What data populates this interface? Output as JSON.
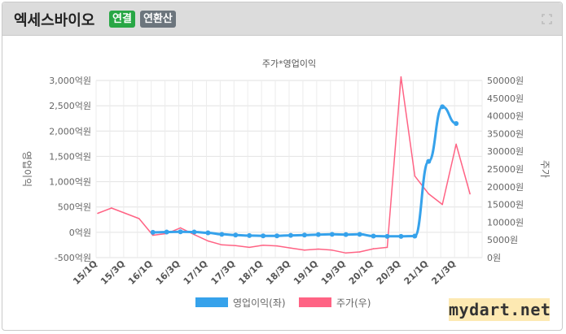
{
  "header": {
    "company_name": "엑세스바이오",
    "badge_consolidated": "연결",
    "badge_period": "연환산"
  },
  "watermark": "mydart.net",
  "icons": {
    "expand": "expand-icon"
  },
  "colors": {
    "operating_profit": "#36a2eb",
    "stock_price": "#ff6384",
    "header_bg": "#dcdcdc",
    "badge_green": "#28a745",
    "badge_gray": "#6c757d",
    "watermark_bg": "#fde9b2"
  },
  "chart_data": {
    "type": "line",
    "title": "주가*영업이익",
    "categories": [
      "15/1Q",
      "15/3Q",
      "16/1Q",
      "16/3Q",
      "17/1Q",
      "17/3Q",
      "18/1Q",
      "18/3Q",
      "19/1Q",
      "19/3Q",
      "20/1Q",
      "20/3Q",
      "21/1Q",
      "21/3Q"
    ],
    "y_left": {
      "label": "영업이익",
      "min": -500,
      "max": 3000,
      "step": 500,
      "ticks": [
        "-500억원",
        "0억원",
        "500억원",
        "1,000억원",
        "1,500억원",
        "2,000억원",
        "2,500억원",
        "3,000억원"
      ]
    },
    "y_right": {
      "label": "주가",
      "min": 0,
      "max": 50000,
      "step": 5000,
      "ticks": [
        "0원",
        "5000원",
        "10000원",
        "15000원",
        "20000원",
        "25000원",
        "30000원",
        "35000원",
        "40000원",
        "45000원",
        "50000원"
      ]
    },
    "series": [
      {
        "name": "영업이익(좌)",
        "axis": "left",
        "x": [
          "16/1Q",
          "16/2Q",
          "16/3Q",
          "16/4Q",
          "17/1Q",
          "17/2Q",
          "17/3Q",
          "17/4Q",
          "18/1Q",
          "18/2Q",
          "18/3Q",
          "18/4Q",
          "19/1Q",
          "19/2Q",
          "19/3Q",
          "19/4Q",
          "20/1Q",
          "20/2Q",
          "20/3Q",
          "20/4Q",
          "21/1Q",
          "21/2Q",
          "21/3Q"
        ],
        "values": [
          0,
          5,
          10,
          5,
          -10,
          -40,
          -55,
          -65,
          -70,
          -70,
          -60,
          -55,
          -45,
          -40,
          -45,
          -40,
          -75,
          -80,
          -80,
          -75,
          1400,
          2480,
          2150
        ]
      },
      {
        "name": "주가(우)",
        "axis": "right",
        "x": [
          "15/1Q",
          "15/2Q",
          "15/3Q",
          "15/4Q",
          "16/1Q",
          "16/2Q",
          "16/3Q",
          "16/4Q",
          "17/1Q",
          "17/2Q",
          "17/3Q",
          "17/4Q",
          "18/1Q",
          "18/2Q",
          "18/3Q",
          "18/4Q",
          "19/1Q",
          "19/2Q",
          "19/3Q",
          "19/4Q",
          "20/1Q",
          "20/2Q",
          "20/3Q",
          "20/4Q",
          "21/1Q",
          "21/2Q",
          "21/3Q",
          "21/4Q"
        ],
        "values": [
          12500,
          14000,
          12500,
          11000,
          6300,
          6800,
          8400,
          6500,
          4700,
          3600,
          3400,
          2900,
          3500,
          3300,
          2700,
          2100,
          2400,
          2100,
          1300,
          1600,
          2500,
          2900,
          51000,
          23000,
          18000,
          15000,
          32000,
          18000
        ]
      }
    ],
    "legend": {
      "position": "bottom",
      "entries": [
        "영업이익(좌)",
        "주가(우)"
      ]
    },
    "grid": true
  }
}
